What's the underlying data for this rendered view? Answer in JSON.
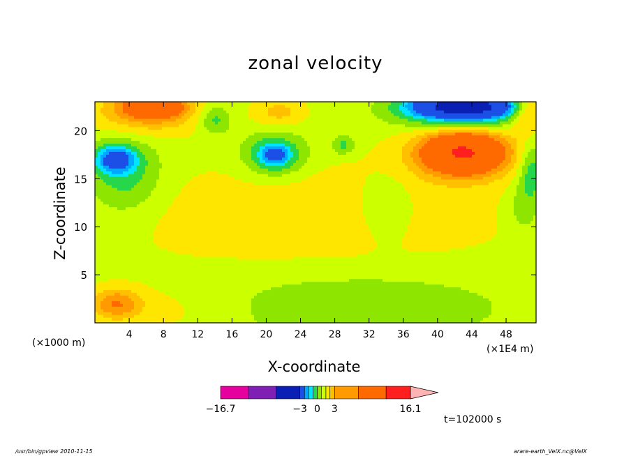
{
  "chart_data": {
    "type": "heatmap",
    "title": "zonal velocity",
    "xlabel": "X-coordinate",
    "ylabel": "Z-coordinate",
    "x_unit_left": "(×1000 m)",
    "x_unit_right": "(×1E4 m)",
    "xlim": [
      0,
      51.5
    ],
    "ylim": [
      0,
      23
    ],
    "x_ticks": [
      4,
      8,
      12,
      16,
      20,
      24,
      28,
      32,
      36,
      40,
      44,
      48
    ],
    "y_ticks": [
      5,
      10,
      15,
      20
    ],
    "colorbar": {
      "labels": [
        "−16.7",
        "−3",
        "0",
        "3",
        "16.1"
      ],
      "label_values": [
        -16.7,
        -3,
        0,
        3,
        16.1
      ],
      "min": -16.7,
      "max": 16.1,
      "colors": [
        "#e6009e",
        "#7f1fb3",
        "#0a1fb3",
        "#1c4fe6",
        "#00a8ff",
        "#00e5ff",
        "#26d64b",
        "#8ee600",
        "#ccff00",
        "#ffe600",
        "#ffc000",
        "#ff9a00",
        "#ff6a00",
        "#ff1f1f",
        "#ff7a7a",
        "#ffb3b3"
      ],
      "level_bounds": [
        -16.7,
        -11.9,
        -7.1,
        -3,
        -2.2,
        -1.5,
        -0.7,
        0,
        0.7,
        1.5,
        2.2,
        3,
        7.1,
        11.9,
        16.1
      ]
    },
    "fields": {
      "background_level": 0.35,
      "blobs": [
        {
          "x": 26,
          "z": 11,
          "rx": 24,
          "ry": 6,
          "v": 0.9
        },
        {
          "x": 9,
          "z": 1.2,
          "rx": 8,
          "ry": 3,
          "v": 0.6
        },
        {
          "x": 2.5,
          "z": 2,
          "rx": 3,
          "ry": 1.6,
          "v": 2.5
        },
        {
          "x": 30,
          "z": 2,
          "rx": 18,
          "ry": 4,
          "v": -0.9
        },
        {
          "x": 34,
          "z": 12,
          "rx": 3,
          "ry": 3.2,
          "v": -1.1
        },
        {
          "x": 3.5,
          "z": 15.5,
          "rx": 4.2,
          "ry": 4,
          "v": -1.6
        },
        {
          "x": 2.4,
          "z": 17,
          "rx": 2.2,
          "ry": 1.3,
          "v": -3.8
        },
        {
          "x": 21,
          "z": 17.5,
          "rx": 3.6,
          "ry": 2.2,
          "v": -2.2
        },
        {
          "x": 21,
          "z": 17.5,
          "rx": 1.6,
          "ry": 1,
          "v": -2.5
        },
        {
          "x": 29,
          "z": 18.5,
          "rx": 1.3,
          "ry": 1,
          "v": -1.4
        },
        {
          "x": 43,
          "z": 17.5,
          "rx": 7,
          "ry": 3,
          "v": 1.6
        },
        {
          "x": 43,
          "z": 17.8,
          "rx": 4.5,
          "ry": 2.1,
          "v": 5.5
        },
        {
          "x": 6,
          "z": 22,
          "rx": 6,
          "ry": 2.2,
          "v": 2.5
        },
        {
          "x": 7,
          "z": 22.6,
          "rx": 3,
          "ry": 1,
          "v": 4.5
        },
        {
          "x": 43,
          "z": 22,
          "rx": 7,
          "ry": 1.8,
          "v": -3.5
        },
        {
          "x": 43,
          "z": 22.6,
          "rx": 5,
          "ry": 1,
          "v": -8
        },
        {
          "x": 21.5,
          "z": 22,
          "rx": 3,
          "ry": 1.5,
          "v": 1.4
        },
        {
          "x": 14,
          "z": 21.2,
          "rx": 1.8,
          "ry": 1.5,
          "v": -1.5
        },
        {
          "x": 50.5,
          "z": 22,
          "rx": 2,
          "ry": 2,
          "v": 2.4
        },
        {
          "x": 51,
          "z": 16,
          "rx": 1.5,
          "ry": 3,
          "v": -1.8
        },
        {
          "x": 50,
          "z": 12,
          "rx": 2,
          "ry": 3,
          "v": -0.9
        }
      ]
    }
  },
  "time_label": "t=102000 s",
  "footer_left": "/usr/bin/gpview   2010-11-15",
  "footer_right": "arare-earth_VelX.nc@VelX"
}
